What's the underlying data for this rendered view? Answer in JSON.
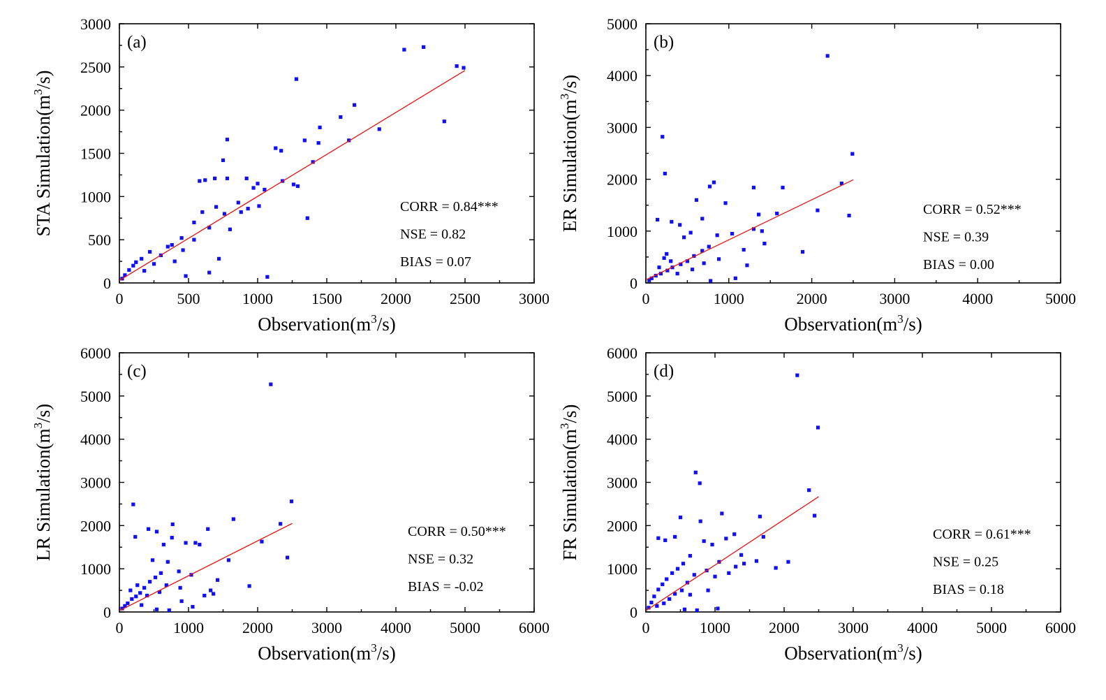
{
  "colors": {
    "points": "#1010f0",
    "fit_line": "#ee1111",
    "axes": "#000000"
  },
  "chart_data": [
    {
      "type": "scatter",
      "panel_label": "(a)",
      "ylabel": "STA Simulation",
      "xlabel": "Observation",
      "unit": {
        "base": "(m",
        "exp": "3",
        "tail": "/s)"
      },
      "xlim": [
        0,
        3000
      ],
      "ylim": [
        0,
        3000
      ],
      "xticks": [
        "0",
        "500",
        "1000",
        "1500",
        "2000",
        "2500",
        "3000"
      ],
      "yticks": [
        "0",
        "500",
        "1000",
        "1500",
        "2000",
        "2500",
        "3000"
      ],
      "fit_line": {
        "x": [
          0,
          2500
        ],
        "y": [
          30,
          2460
        ]
      },
      "stats": [
        "CORR = 0.84***",
        "NSE = 0.82",
        "BIAS = 0.07"
      ],
      "scatter_points": [
        [
          2060,
          2700
        ],
        [
          2200,
          2730
        ],
        [
          2440,
          2510
        ],
        [
          2490,
          2490
        ],
        [
          2350,
          1870
        ],
        [
          1280,
          2360
        ],
        [
          1880,
          1780
        ],
        [
          1700,
          2060
        ],
        [
          1600,
          1920
        ],
        [
          1660,
          1650
        ],
        [
          1450,
          1800
        ],
        [
          1440,
          1620
        ],
        [
          1340,
          1650
        ],
        [
          1400,
          1400
        ],
        [
          1130,
          1560
        ],
        [
          1170,
          1530
        ],
        [
          1180,
          1180
        ],
        [
          1260,
          1140
        ],
        [
          1290,
          1120
        ],
        [
          1360,
          750
        ],
        [
          1070,
          70
        ],
        [
          780,
          1660
        ],
        [
          750,
          1420
        ],
        [
          690,
          1210
        ],
        [
          780,
          1210
        ],
        [
          580,
          1180
        ],
        [
          620,
          1190
        ],
        [
          920,
          1210
        ],
        [
          1000,
          1150
        ],
        [
          970,
          1100
        ],
        [
          1050,
          1080
        ],
        [
          1010,
          890
        ],
        [
          930,
          860
        ],
        [
          880,
          820
        ],
        [
          860,
          930
        ],
        [
          800,
          620
        ],
        [
          720,
          280
        ],
        [
          650,
          120
        ],
        [
          480,
          80
        ],
        [
          540,
          700
        ],
        [
          600,
          820
        ],
        [
          700,
          880
        ],
        [
          760,
          800
        ],
        [
          650,
          640
        ],
        [
          540,
          500
        ],
        [
          380,
          440
        ],
        [
          300,
          320
        ],
        [
          220,
          360
        ],
        [
          160,
          280
        ],
        [
          100,
          200
        ],
        [
          70,
          150
        ],
        [
          40,
          90
        ],
        [
          20,
          50
        ],
        [
          400,
          250
        ],
        [
          460,
          380
        ],
        [
          350,
          420
        ],
        [
          250,
          220
        ],
        [
          180,
          140
        ],
        [
          120,
          240
        ],
        [
          450,
          520
        ]
      ]
    },
    {
      "type": "scatter",
      "panel_label": "(b)",
      "ylabel": "ER Simulation",
      "xlabel": "Observation",
      "unit": {
        "base": "(m",
        "exp": "3",
        "tail": "/s)"
      },
      "xlim": [
        0,
        5000
      ],
      "ylim": [
        0,
        5000
      ],
      "xticks": [
        "0",
        "1000",
        "2000",
        "3000",
        "4000",
        "5000"
      ],
      "yticks": [
        "0",
        "1000",
        "2000",
        "3000",
        "4000",
        "5000"
      ],
      "fit_line": {
        "x": [
          0,
          2500
        ],
        "y": [
          60,
          1990
        ]
      },
      "stats": [
        "CORR = 0.52***",
        "NSE = 0.39",
        "BIAS = 0.00"
      ],
      "scatter_points": [
        [
          2190,
          4380
        ],
        [
          2490,
          2490
        ],
        [
          2360,
          1920
        ],
        [
          2450,
          1300
        ],
        [
          2070,
          1400
        ],
        [
          1890,
          600
        ],
        [
          1650,
          1840
        ],
        [
          1300,
          1840
        ],
        [
          1580,
          1340
        ],
        [
          1360,
          1320
        ],
        [
          1400,
          1000
        ],
        [
          1300,
          1040
        ],
        [
          1430,
          760
        ],
        [
          1220,
          340
        ],
        [
          1040,
          950
        ],
        [
          960,
          1540
        ],
        [
          820,
          1940
        ],
        [
          770,
          1860
        ],
        [
          610,
          1600
        ],
        [
          680,
          1240
        ],
        [
          200,
          2820
        ],
        [
          230,
          2110
        ],
        [
          140,
          1220
        ],
        [
          410,
          1120
        ],
        [
          310,
          1180
        ],
        [
          540,
          970
        ],
        [
          460,
          880
        ],
        [
          860,
          920
        ],
        [
          760,
          700
        ],
        [
          680,
          620
        ],
        [
          580,
          520
        ],
        [
          500,
          420
        ],
        [
          420,
          360
        ],
        [
          320,
          300
        ],
        [
          260,
          240
        ],
        [
          180,
          180
        ],
        [
          120,
          140
        ],
        [
          70,
          90
        ],
        [
          40,
          50
        ],
        [
          300,
          420
        ],
        [
          250,
          560
        ],
        [
          380,
          180
        ],
        [
          560,
          260
        ],
        [
          700,
          380
        ],
        [
          880,
          460
        ],
        [
          1080,
          90
        ],
        [
          780,
          40
        ],
        [
          1180,
          640
        ],
        [
          220,
          480
        ],
        [
          160,
          300
        ]
      ]
    },
    {
      "type": "scatter",
      "panel_label": "(c)",
      "ylabel": "LR Simulation",
      "xlabel": "Observation",
      "unit": {
        "base": "(m",
        "exp": "3",
        "tail": "/s)"
      },
      "xlim": [
        0,
        6000
      ],
      "ylim": [
        0,
        6000
      ],
      "xticks": [
        "0",
        "1000",
        "2000",
        "3000",
        "4000",
        "5000",
        "6000"
      ],
      "yticks": [
        "0",
        "1000",
        "2000",
        "3000",
        "4000",
        "5000",
        "6000"
      ],
      "fit_line": {
        "x": [
          0,
          2500
        ],
        "y": [
          30,
          2050
        ]
      },
      "stats": [
        "CORR = 0.50***",
        "NSE = 0.32",
        "BIAS = -0.02"
      ],
      "scatter_points": [
        [
          2190,
          5270
        ],
        [
          2490,
          2560
        ],
        [
          2330,
          2040
        ],
        [
          2430,
          1260
        ],
        [
          2060,
          1630
        ],
        [
          1650,
          2150
        ],
        [
          1880,
          600
        ],
        [
          1580,
          1200
        ],
        [
          1280,
          1920
        ],
        [
          1100,
          1600
        ],
        [
          1160,
          1560
        ],
        [
          1420,
          740
        ],
        [
          1320,
          500
        ],
        [
          1360,
          420
        ],
        [
          1230,
          380
        ],
        [
          200,
          2490
        ],
        [
          230,
          1740
        ],
        [
          420,
          1920
        ],
        [
          540,
          1860
        ],
        [
          770,
          2030
        ],
        [
          960,
          1600
        ],
        [
          640,
          1560
        ],
        [
          760,
          1720
        ],
        [
          480,
          1200
        ],
        [
          700,
          1160
        ],
        [
          600,
          900
        ],
        [
          520,
          800
        ],
        [
          440,
          700
        ],
        [
          360,
          560
        ],
        [
          300,
          440
        ],
        [
          240,
          360
        ],
        [
          180,
          300
        ],
        [
          120,
          200
        ],
        [
          80,
          140
        ],
        [
          40,
          80
        ],
        [
          860,
          940
        ],
        [
          1040,
          860
        ],
        [
          1060,
          120
        ],
        [
          720,
          40
        ],
        [
          540,
          60
        ],
        [
          880,
          560
        ],
        [
          680,
          620
        ],
        [
          400,
          380
        ],
        [
          260,
          620
        ],
        [
          160,
          500
        ],
        [
          900,
          250
        ],
        [
          320,
          160
        ],
        [
          580,
          460
        ]
      ]
    },
    {
      "type": "scatter",
      "panel_label": "(d)",
      "ylabel": "FR Simulation",
      "xlabel": "Observation",
      "unit": {
        "base": "(m",
        "exp": "3",
        "tail": "/s)"
      },
      "xlim": [
        0,
        6000
      ],
      "ylim": [
        0,
        6000
      ],
      "xticks": [
        "0",
        "1000",
        "2000",
        "3000",
        "4000",
        "5000",
        "6000"
      ],
      "yticks": [
        "0",
        "1000",
        "2000",
        "3000",
        "4000",
        "5000",
        "6000"
      ],
      "fit_line": {
        "x": [
          0,
          2500
        ],
        "y": [
          30,
          2670
        ]
      },
      "stats": [
        "CORR = 0.61***",
        "NSE = 0.25",
        "BIAS = 0.18"
      ],
      "scatter_points": [
        [
          2190,
          5480
        ],
        [
          2490,
          4270
        ],
        [
          2360,
          2820
        ],
        [
          2440,
          2230
        ],
        [
          2060,
          1160
        ],
        [
          1880,
          1020
        ],
        [
          1700,
          1740
        ],
        [
          1650,
          2210
        ],
        [
          1600,
          1180
        ],
        [
          1420,
          1120
        ],
        [
          1380,
          1320
        ],
        [
          1280,
          1800
        ],
        [
          1100,
          2280
        ],
        [
          1300,
          1050
        ],
        [
          1160,
          1700
        ],
        [
          720,
          3230
        ],
        [
          780,
          2980
        ],
        [
          790,
          2100
        ],
        [
          500,
          2190
        ],
        [
          180,
          1710
        ],
        [
          280,
          1660
        ],
        [
          420,
          1740
        ],
        [
          840,
          1640
        ],
        [
          960,
          1560
        ],
        [
          1060,
          1160
        ],
        [
          640,
          1300
        ],
        [
          540,
          1120
        ],
        [
          460,
          1000
        ],
        [
          380,
          900
        ],
        [
          300,
          760
        ],
        [
          240,
          640
        ],
        [
          180,
          520
        ],
        [
          120,
          360
        ],
        [
          80,
          220
        ],
        [
          40,
          100
        ],
        [
          600,
          680
        ],
        [
          700,
          860
        ],
        [
          880,
          960
        ],
        [
          1000,
          820
        ],
        [
          520,
          500
        ],
        [
          420,
          420
        ],
        [
          340,
          300
        ],
        [
          1040,
          80
        ],
        [
          740,
          40
        ],
        [
          560,
          60
        ],
        [
          260,
          200
        ],
        [
          160,
          140
        ],
        [
          900,
          500
        ],
        [
          640,
          400
        ],
        [
          1200,
          900
        ]
      ]
    }
  ]
}
